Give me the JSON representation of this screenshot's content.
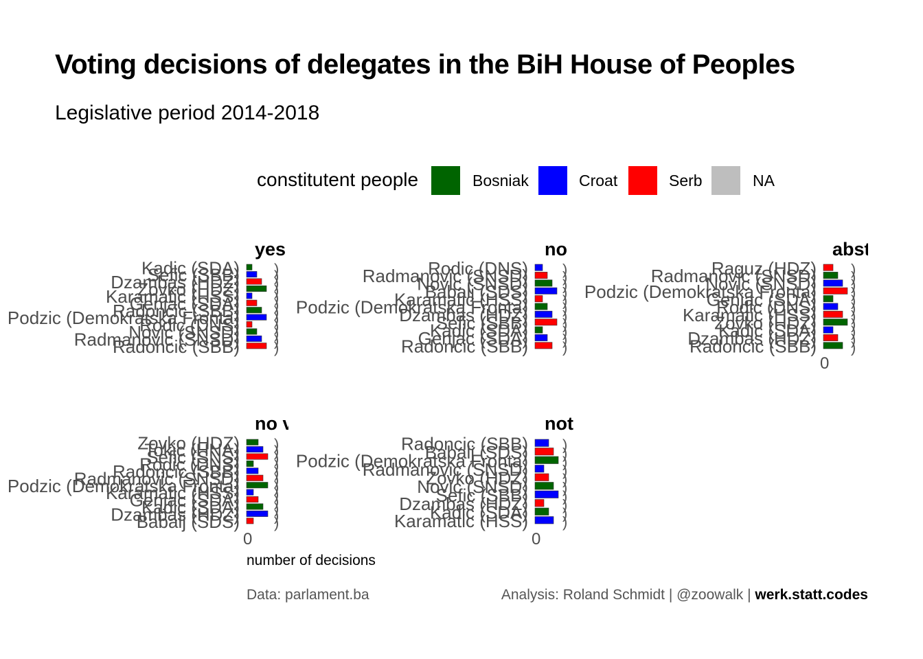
{
  "title": "Voting decisions of delegates in the BiH House of Peoples",
  "subtitle": "Legislative period 2014-2018",
  "legend": {
    "title": "constitutent people",
    "items": [
      {
        "label": "Bosniak",
        "color": "#006400"
      },
      {
        "label": "Croat",
        "color": "#0000FF"
      },
      {
        "label": "Serb",
        "color": "#FF0000"
      },
      {
        "label": "NA",
        "color": "#BEBEBE"
      }
    ]
  },
  "x_axis_title": "number of decisions",
  "caption": {
    "left": "Data: parlament.ba",
    "right_prefix": "Analysis: Roland Schmidt | @zoowalk | ",
    "right_bold": "werk.statt.codes"
  },
  "chart_data": {
    "type": "bar",
    "orientation": "horizontal",
    "facets": [
      {
        "title": "yes",
        "delegates": [
          "Kadic (SDA)",
          "Sefic (SBB)",
          "Dzambas (HDZ)",
          "Zovko (HDZ)",
          "Karamatic (HSS)",
          "Genjac (SDA)",
          "Radoncic (SBB)",
          "Podzic (Demokratska Fronta)",
          "Rodic (DNS)",
          "Novic (SNSD)",
          "Radmanovic (SNSD)",
          "Radoncic (SBB)"
        ],
        "labels_shown": true
      },
      {
        "title": "no",
        "delegates": [
          "Rodic (DNS)",
          "Radmanovic (SNSD)",
          "Novic (SNSD)",
          "Babalj (SDS)",
          "Karamatic (HSS)",
          "Podzic (Demokratska Fronta)",
          "Dzambas (HDZ)",
          "Sefic (SBB)",
          "Kadic (SDA)",
          "Genjac (SDA)",
          "Radoncic (SBB)"
        ],
        "labels_shown": true
      },
      {
        "title": "abst",
        "delegates": [
          "Raguz (HDZ)",
          "Radmanovic (SNSD)",
          "Novic (SNSD)",
          "Podzic (Demokratska Fronta)",
          "Genjac (SDA)",
          "Rodic (DNS)",
          "Karamatic (HSS)",
          "Zovko (HDZ)",
          "Kadic (SDA)",
          "Dzambas (HDZ)",
          "Radoncic (SBB)"
        ],
        "labels_shown": true
      },
      {
        "title": "no v",
        "delegates": [
          "Zovko (HDZ)",
          "Tokic (HNA)",
          "Sefic (SNS)",
          "Rodic (DNS)",
          "Radoncic (SBB)",
          "Radmanovic (SNSD)",
          "Podzic (Demokratska Fronta)",
          "Karamatic (HSS)",
          "Genjac (SDA)",
          "Kadic (SDA)",
          "Dzambas (HDZ)",
          "Babalj (SDS)"
        ],
        "labels_shown": true
      },
      {
        "title": "not",
        "delegates": [
          "Radoncic (SBB)",
          "Babalj (SDS)",
          "Podzic (Demokratska Fronta)",
          "Radmanovic (SNSD)",
          "Zovko (HDZ)",
          "Novic (SNSD)",
          "Sefic (SBB)",
          "Dzambas (HDZ)",
          "Kadic (SDA)",
          "Karamatic (HSS)"
        ],
        "labels_shown": true
      }
    ]
  }
}
